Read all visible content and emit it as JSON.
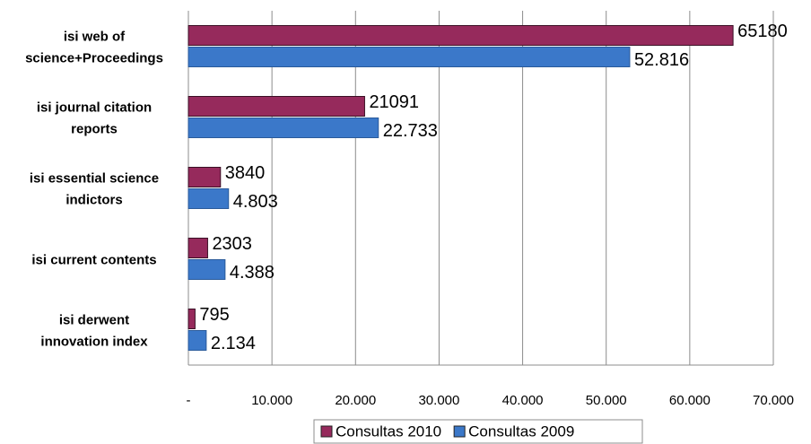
{
  "chart_data": {
    "type": "bar",
    "orientation": "horizontal",
    "categories": [
      [
        "isi web of",
        "science+Proceedings"
      ],
      [
        "isi journal citation",
        "reports"
      ],
      [
        "isi essential science",
        "indictors"
      ],
      [
        "isi current contents"
      ],
      [
        "isi derwent",
        "innovation index"
      ]
    ],
    "series": [
      {
        "name": "Consultas 2010",
        "color": "#962a5c",
        "values": [
          65180,
          21091,
          3840,
          2303,
          795
        ]
      },
      {
        "name": "Consultas 2009",
        "color": "#3b78c9",
        "values": [
          52816,
          22733,
          4803,
          4388,
          2134
        ],
        "value_labels": [
          "52.816",
          "22.733",
          "4.803",
          "4.388",
          "2.134"
        ]
      }
    ],
    "xlim": [
      0,
      70000
    ],
    "xticks": [
      {
        "value": 0,
        "label": "-"
      },
      {
        "value": 10000,
        "label": "10.000"
      },
      {
        "value": 20000,
        "label": "20.000"
      },
      {
        "value": 30000,
        "label": "30.000"
      },
      {
        "value": 40000,
        "label": "40.000"
      },
      {
        "value": 50000,
        "label": "50.000"
      },
      {
        "value": 60000,
        "label": "60.000"
      },
      {
        "value": 70000,
        "label": "70.000"
      }
    ],
    "grid": true,
    "legend": "bottom"
  }
}
